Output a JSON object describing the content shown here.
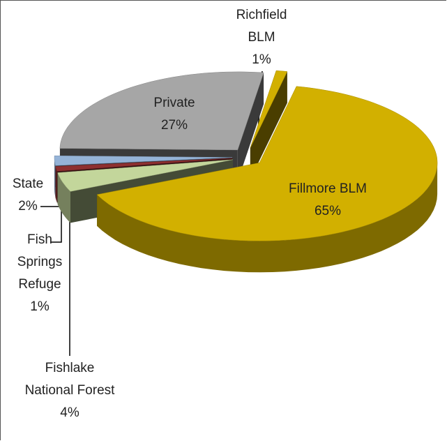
{
  "chart_data": {
    "type": "pie3d",
    "categories": [
      "Fillmore BLM",
      "Fishlake National Forest",
      "Fish Springs Refuge",
      "State",
      "Private",
      "Richfield BLM"
    ],
    "values": [
      65,
      4,
      1,
      2,
      27,
      1
    ],
    "value_labels": [
      "65%",
      "4%",
      "1%",
      "2%",
      "27%",
      "1%"
    ],
    "colors": [
      "#d2b000",
      "#c3d69b",
      "#8e3030",
      "#95b3d7",
      "#a6a6a6",
      "#d2b000"
    ]
  }
}
